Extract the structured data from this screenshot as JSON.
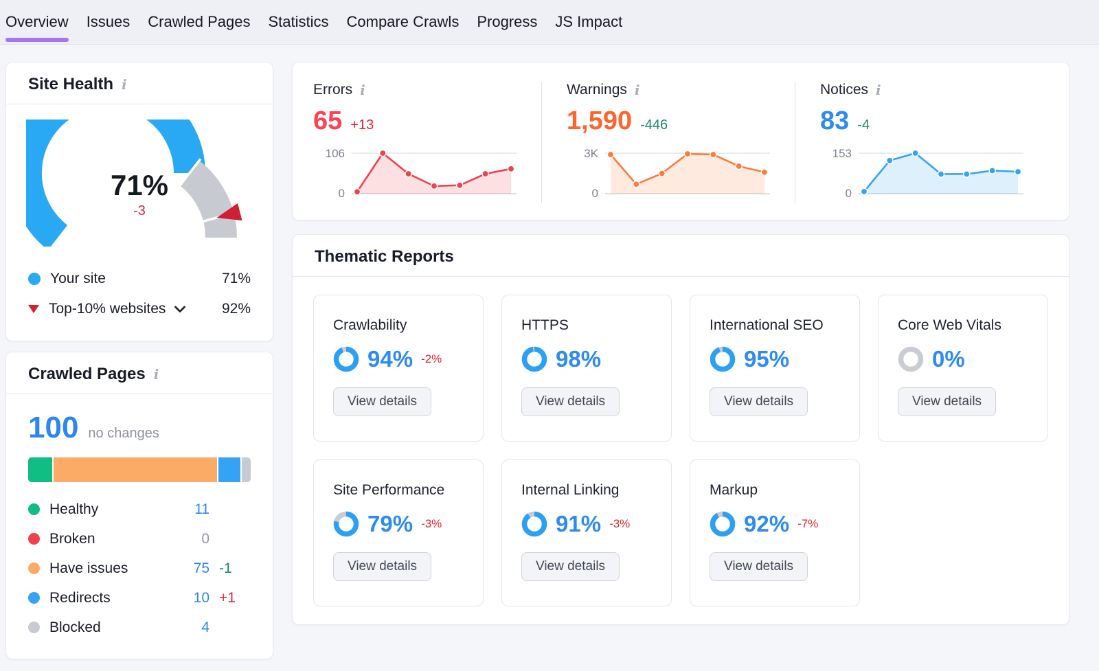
{
  "nav": {
    "tabs": [
      {
        "label": "Overview",
        "active": true
      },
      {
        "label": "Issues",
        "active": false
      },
      {
        "label": "Crawled Pages",
        "active": false
      },
      {
        "label": "Statistics",
        "active": false
      },
      {
        "label": "Compare Crawls",
        "active": false
      },
      {
        "label": "Progress",
        "active": false
      },
      {
        "label": "JS Impact",
        "active": false
      }
    ]
  },
  "site_health": {
    "title": "Site Health",
    "value": "71%",
    "delta": "-3",
    "legend": [
      {
        "label": "Your site",
        "value": "71%"
      },
      {
        "label": "Top-10% websites",
        "value": "92%"
      }
    ]
  },
  "crawled_pages": {
    "title": "Crawled Pages",
    "total": "100",
    "change_label": "no changes",
    "legend": [
      {
        "label": "Healthy",
        "value": "11",
        "delta": "",
        "color": "#10bd83",
        "value_color": "#2e86f0",
        "delta_color": "#1b8a66"
      },
      {
        "label": "Broken",
        "value": "0",
        "delta": "",
        "color": "#f0414d",
        "value_color": "#9298a3",
        "delta_color": "#1b8a66"
      },
      {
        "label": "Have issues",
        "value": "75",
        "delta": "-1",
        "color": "#fbab66",
        "value_color": "#2e86f0",
        "delta_color": "#1b8a66"
      },
      {
        "label": "Redirects",
        "value": "10",
        "delta": "+1",
        "color": "#35a3f5",
        "value_color": "#2e86f0",
        "delta_color": "#e22134"
      },
      {
        "label": "Blocked",
        "value": "4",
        "delta": "",
        "color": "#c7cad1",
        "value_color": "#2e86f0",
        "delta_color": "#1b8a66"
      }
    ]
  },
  "stats": [
    {
      "label": "Errors",
      "value": "65",
      "delta": "+13",
      "value_color": "#ff4050",
      "delta_color": "#e22134",
      "ymax_label": "106",
      "ymin_label": "0"
    },
    {
      "label": "Warnings",
      "value": "1,590",
      "delta": "-446",
      "value_color": "#ff642b",
      "delta_color": "#1b8a66",
      "ymax_label": "3K",
      "ymin_label": "0"
    },
    {
      "label": "Notices",
      "value": "83",
      "delta": "-4",
      "value_color": "#2e8bf0",
      "delta_color": "#1b8a66",
      "ymax_label": "153",
      "ymin_label": "0"
    }
  ],
  "thematic": {
    "title": "Thematic Reports",
    "button_label": "View details",
    "cards": [
      {
        "name": "Crawlability",
        "score": 94,
        "score_label": "94%",
        "delta": "-2%"
      },
      {
        "name": "HTTPS",
        "score": 98,
        "score_label": "98%",
        "delta": ""
      },
      {
        "name": "International SEO",
        "score": 95,
        "score_label": "95%",
        "delta": ""
      },
      {
        "name": "Core Web Vitals",
        "score": 0,
        "score_label": "0%",
        "delta": ""
      },
      {
        "name": "Site Performance",
        "score": 79,
        "score_label": "79%",
        "delta": "-3%"
      },
      {
        "name": "Internal Linking",
        "score": 91,
        "score_label": "91%",
        "delta": "-3%"
      },
      {
        "name": "Markup",
        "score": 92,
        "score_label": "92%",
        "delta": "-7%"
      }
    ]
  },
  "colors": {
    "accent_blue": "#2e86f0",
    "sky_blue": "#29a9f3",
    "purple_active_tab": "#a375f3",
    "red": "#f0414d",
    "orange": "#ff7a3a",
    "green": "#10bd83",
    "gray": "#c7cad1"
  },
  "chart_data": [
    {
      "id": "site-health-gauge",
      "type": "gauge",
      "title": "Site Health",
      "value": 71,
      "delta": -3,
      "benchmark": 92,
      "value_color": "#29a9f3",
      "rest_color": "#c7cad1",
      "marker_color": "#cf1f30"
    },
    {
      "id": "crawled-pages-bar",
      "type": "stacked-bar",
      "title": "Crawled Pages",
      "total": 100,
      "categories": [
        "Healthy",
        "Broken",
        "Have issues",
        "Redirects",
        "Blocked"
      ],
      "values": [
        11,
        0,
        75,
        10,
        4
      ],
      "colors": [
        "#10bd83",
        "#f0414d",
        "#fbab66",
        "#35a3f5",
        "#c7cad1"
      ]
    },
    {
      "id": "errors-trend",
      "type": "area",
      "title": "Errors",
      "ylim": [
        0,
        106
      ],
      "values": [
        5,
        106,
        52,
        20,
        22,
        52,
        65
      ],
      "line_color": "#f0414d",
      "fill_color": "rgba(240,65,77,0.16)"
    },
    {
      "id": "warnings-trend",
      "type": "area",
      "title": "Warnings",
      "ylim": [
        0,
        3000
      ],
      "values": [
        2900,
        700,
        1500,
        2950,
        2900,
        2036,
        1590
      ],
      "line_color": "#ff7a3a",
      "fill_color": "rgba(255,122,58,0.16)"
    },
    {
      "id": "notices-trend",
      "type": "area",
      "title": "Notices",
      "ylim": [
        0,
        153
      ],
      "values": [
        8,
        125,
        153,
        74,
        74,
        87,
        83
      ],
      "line_color": "#35a3f5",
      "fill_color": "rgba(53,163,245,0.16)"
    },
    {
      "id": "thematic-donuts",
      "type": "donut",
      "values": [
        94,
        98,
        95,
        0,
        79,
        91,
        92
      ],
      "ring_color": "#2aa0f6",
      "rest_color": "#c9ccd3"
    }
  ]
}
